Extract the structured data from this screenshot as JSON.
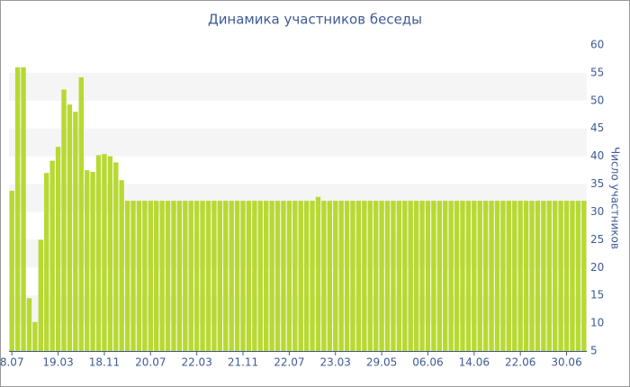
{
  "chart_data": {
    "type": "bar",
    "title": "Динамика участников беседы",
    "y_label": "Число участников",
    "categories": [
      "8.07",
      null,
      null,
      null,
      null,
      null,
      null,
      null,
      "19.03",
      null,
      null,
      null,
      null,
      null,
      null,
      null,
      "18.11",
      null,
      null,
      null,
      null,
      null,
      null,
      null,
      "20.07",
      null,
      null,
      null,
      null,
      null,
      null,
      null,
      "22.03",
      null,
      null,
      null,
      null,
      null,
      null,
      null,
      "21.11",
      null,
      null,
      null,
      null,
      null,
      null,
      null,
      "22.07",
      null,
      null,
      null,
      null,
      null,
      null,
      null,
      "23.03",
      null,
      null,
      null,
      null,
      null,
      null,
      null,
      "29.05",
      null,
      null,
      null,
      null,
      null,
      null,
      null,
      "06.06",
      null,
      null,
      null,
      null,
      null,
      null,
      null,
      "14.06",
      null,
      null,
      null,
      null,
      null,
      null,
      null,
      "22.06",
      null,
      null,
      null,
      null,
      null,
      null,
      null,
      "30.06",
      null,
      null,
      null
    ],
    "values": [
      33.8,
      56,
      56,
      14.5,
      10.2,
      25,
      37,
      39.2,
      41.7,
      52,
      49.3,
      48,
      54.2,
      37.5,
      37.2,
      40.2,
      40.4,
      40,
      38.9,
      35.7,
      32,
      32,
      32,
      32,
      32,
      32,
      32,
      32,
      32,
      32,
      32,
      32,
      32,
      32,
      32,
      32,
      32,
      32,
      32,
      32,
      32,
      32,
      32,
      32,
      32,
      32,
      32,
      32,
      32,
      32,
      32,
      32,
      32,
      32.7,
      32,
      32,
      32,
      32,
      32,
      32,
      32,
      32,
      32,
      32,
      32,
      32,
      32,
      32,
      32,
      32,
      32,
      32,
      32,
      32,
      32,
      32,
      32,
      32,
      32,
      32,
      32,
      32,
      32,
      32,
      32,
      32,
      32,
      32,
      32,
      32,
      32,
      32,
      32,
      32,
      32,
      32,
      32,
      32,
      32,
      32
    ],
    "color": "#b7d932",
    "ylim": [
      5,
      60
    ],
    "yticks": [
      5,
      10,
      15,
      20,
      25,
      30,
      35,
      40,
      45,
      50,
      55,
      60
    ],
    "y_axis_side": "right",
    "grid_bands": true
  }
}
